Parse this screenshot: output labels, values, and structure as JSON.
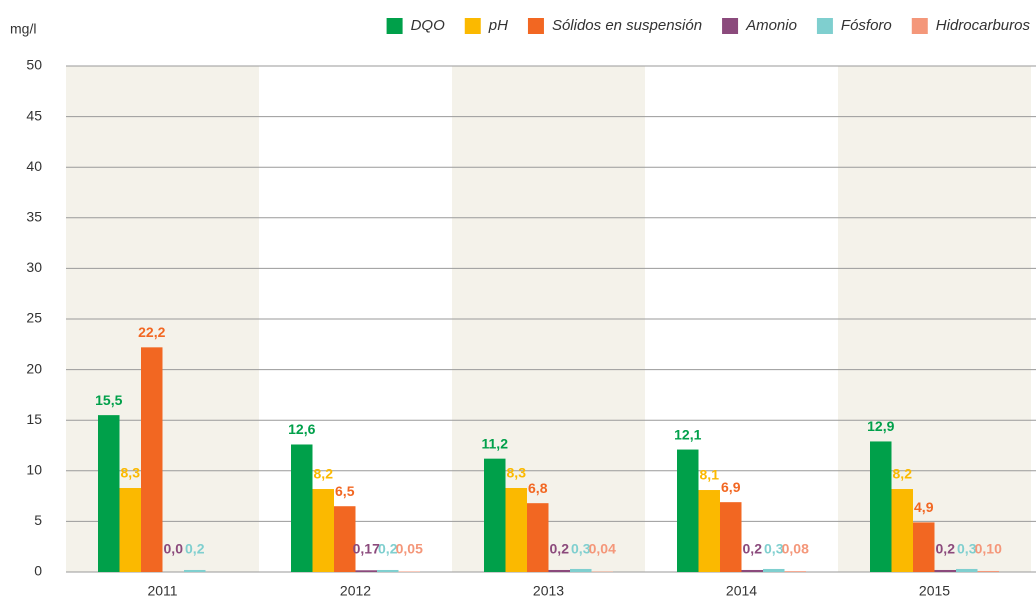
{
  "chart_data": {
    "type": "bar",
    "y_label": "mg/l",
    "categories": [
      "2011",
      "2012",
      "2013",
      "2014",
      "2015"
    ],
    "series": [
      {
        "name": "DQO",
        "color": "#00a04a",
        "values": [
          15.5,
          12.6,
          11.2,
          12.1,
          12.9
        ],
        "value_labels": [
          "15,5",
          "12,6",
          "11,2",
          "12,1",
          "12,9"
        ]
      },
      {
        "name": "pH",
        "color": "#fbb900",
        "values": [
          8.3,
          8.2,
          8.3,
          8.1,
          8.2
        ],
        "value_labels": [
          "8,3",
          "8,2",
          "8,3",
          "8,1",
          "8,2"
        ]
      },
      {
        "name": "Sólidos en suspensión",
        "color": "#f26722",
        "values": [
          22.2,
          6.5,
          6.8,
          6.9,
          4.9
        ],
        "value_labels": [
          "22,2",
          "6,5",
          "6,8",
          "6,9",
          "4,9"
        ]
      },
      {
        "name": "Amonio",
        "color": "#8b4a7c",
        "values": [
          0.0,
          0.17,
          0.2,
          0.2,
          0.2
        ],
        "value_labels": [
          "0,0",
          "0,17",
          "0,2",
          "0,2",
          "0,2"
        ]
      },
      {
        "name": "Fósforo",
        "color": "#7fcfcf",
        "values": [
          0.2,
          0.2,
          0.3,
          0.3,
          0.3
        ],
        "value_labels": [
          "0,2",
          "0,2",
          "0,3",
          "0,3",
          "0,3"
        ]
      },
      {
        "name": "Hidrocarburos",
        "color": "#f4977a",
        "values": [
          null,
          0.05,
          0.04,
          0.08,
          0.1
        ],
        "value_labels": [
          null,
          "0,05",
          "0,04",
          "0,08",
          "0,10"
        ]
      }
    ],
    "ylim": [
      0,
      50
    ],
    "yticks": [
      0,
      5,
      10,
      15,
      20,
      25,
      30,
      35,
      40,
      45,
      50
    ],
    "grid": true,
    "legend": "top"
  }
}
